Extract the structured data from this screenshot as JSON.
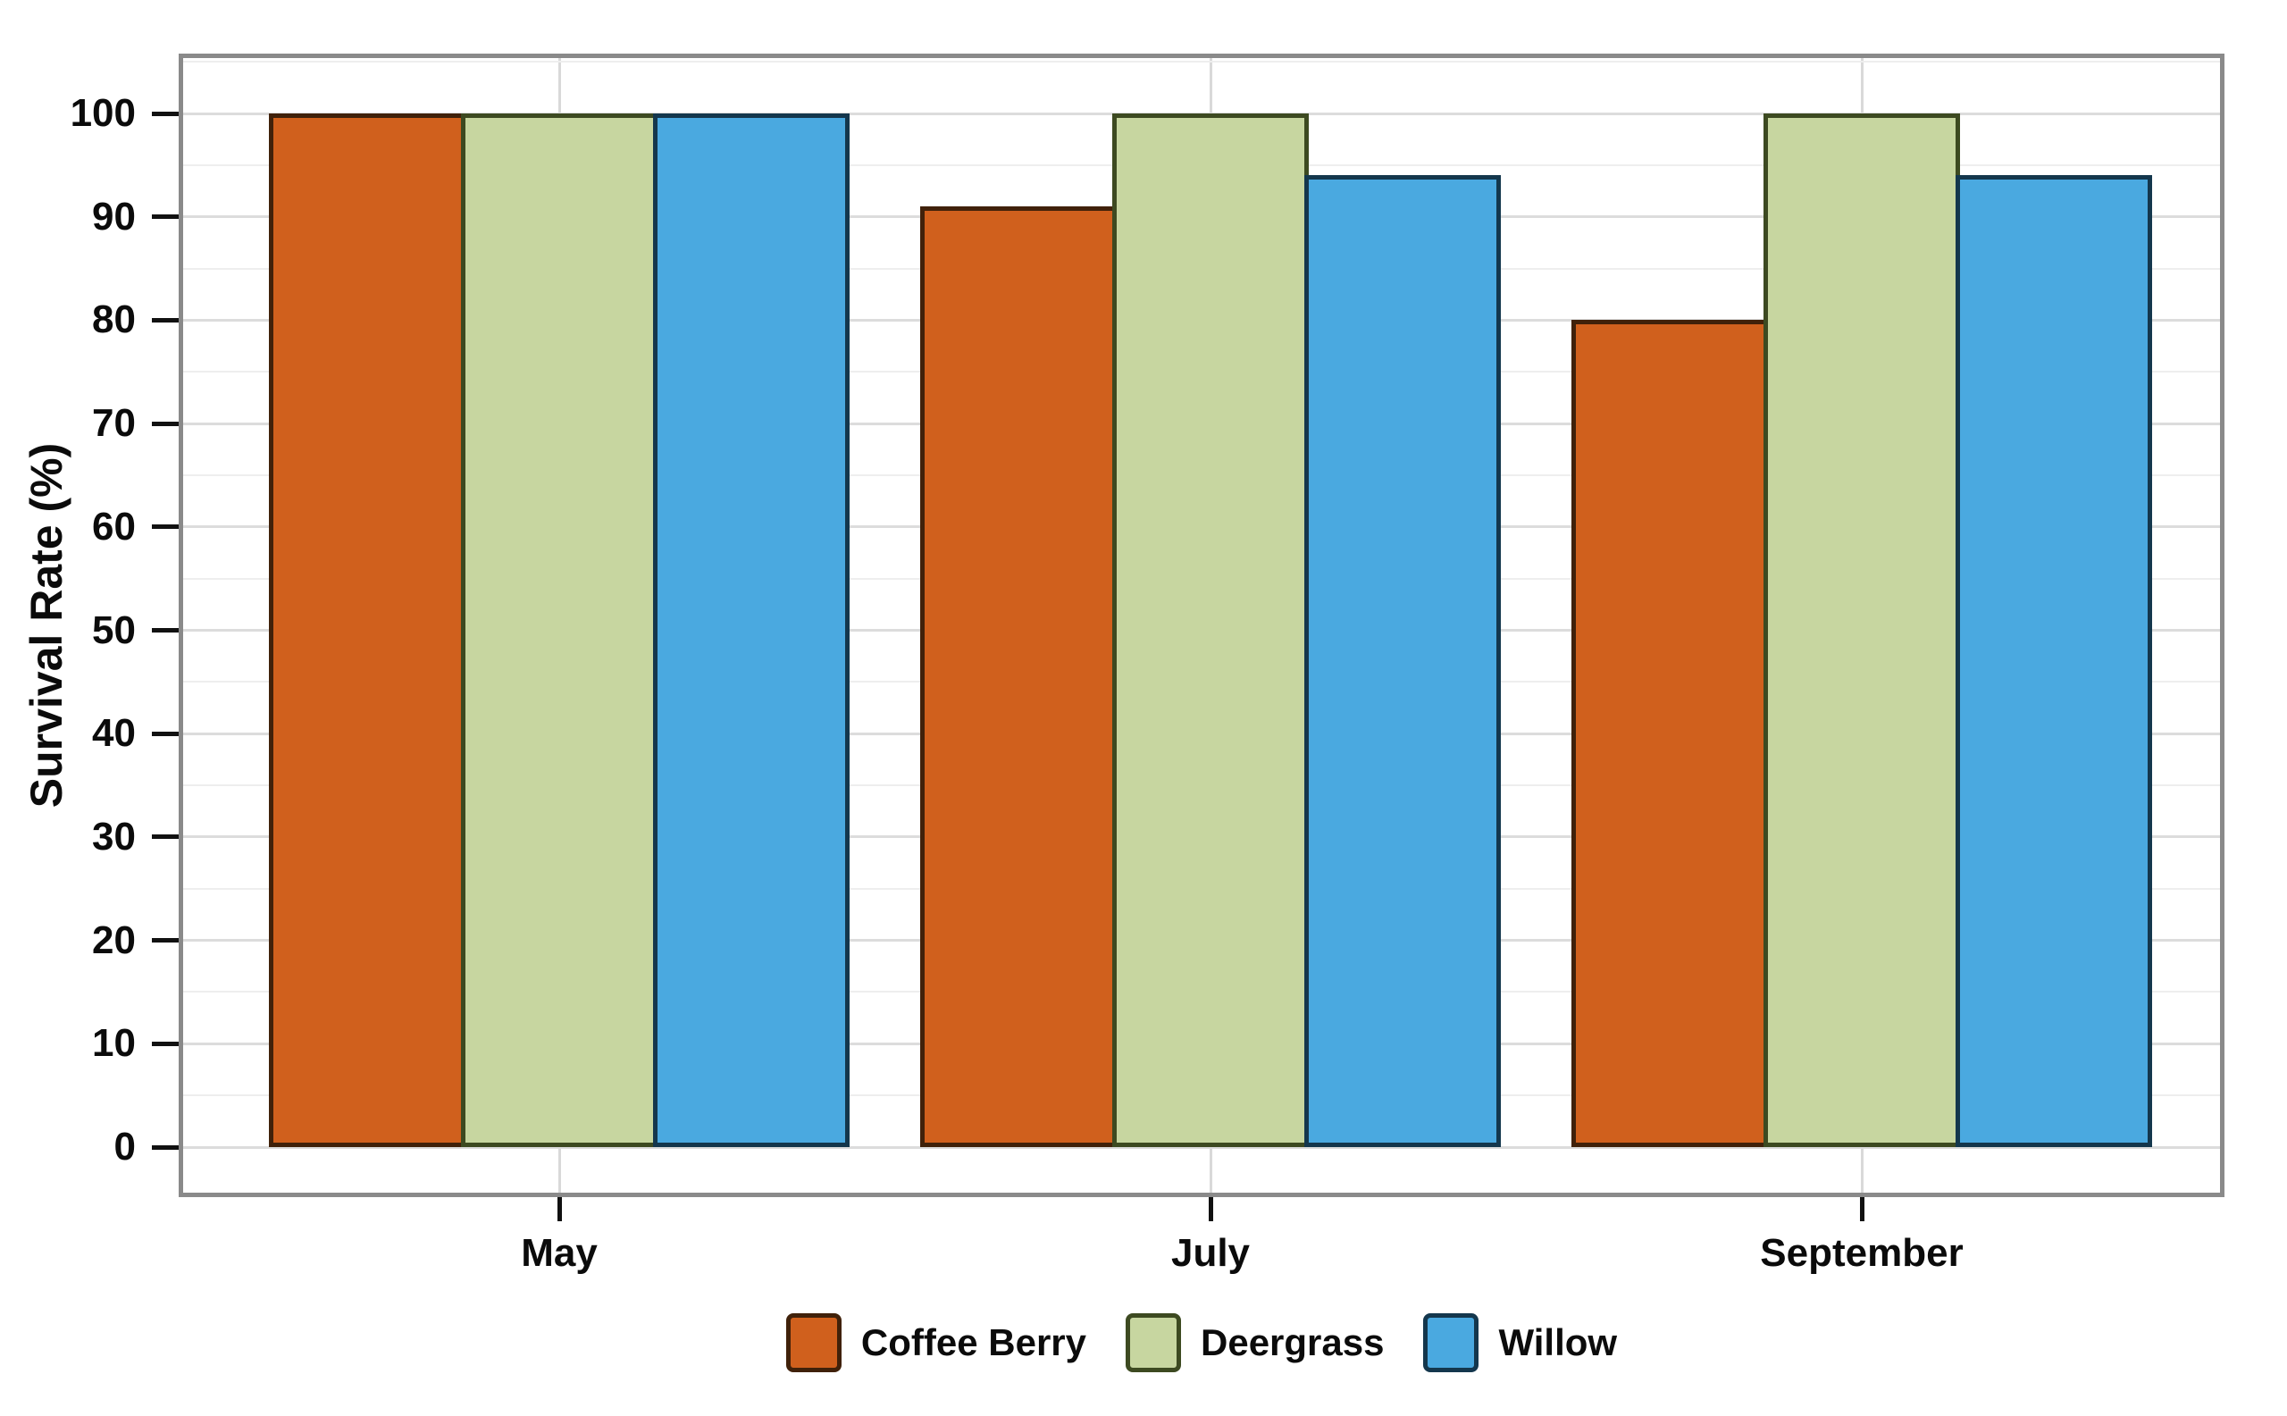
{
  "chart_data": {
    "type": "bar",
    "title": "",
    "xlabel": "",
    "ylabel": "Survival Rate (%)",
    "categories": [
      "May",
      "July",
      "September"
    ],
    "series": [
      {
        "name": "Coffee Berry",
        "color": "#d0601d",
        "border_color": "#40210a",
        "values": [
          100,
          91,
          80
        ]
      },
      {
        "name": "Deergrass",
        "color": "#c7d6a0",
        "border_color": "#3d4a21",
        "values": [
          100,
          100,
          100
        ]
      },
      {
        "name": "Willow",
        "color": "#4aa9e0",
        "border_color": "#14374d",
        "values": [
          100,
          94,
          94
        ]
      }
    ],
    "ylim": [
      -5,
      106
    ],
    "yticks": [
      0,
      10,
      20,
      30,
      40,
      50,
      60,
      70,
      80,
      90,
      100
    ],
    "minor_tick_step": 5,
    "grid": "on",
    "legend_position": "bottom",
    "colors": {
      "frame": "#8a8a8a",
      "grid_major": "#dcdcdc",
      "grid_minor": "#eeeeee",
      "grid_vertical": "#d9d9d9",
      "tick": "#111111",
      "text": "#0b0b0b",
      "background": "#ffffff"
    }
  }
}
